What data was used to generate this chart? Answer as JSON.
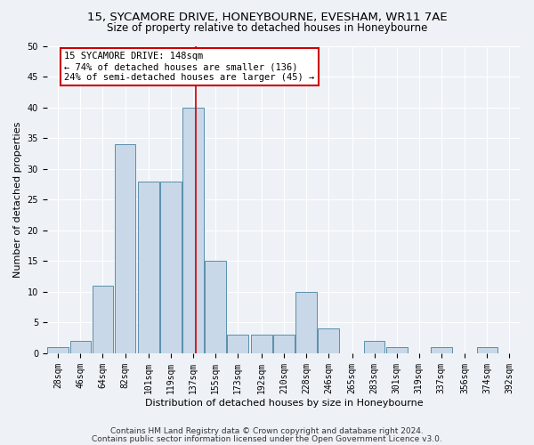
{
  "title1": "15, SYCAMORE DRIVE, HONEYBOURNE, EVESHAM, WR11 7AE",
  "title2": "Size of property relative to detached houses in Honeybourne",
  "xlabel": "Distribution of detached houses by size in Honeybourne",
  "ylabel": "Number of detached properties",
  "bin_labels": [
    "28sqm",
    "46sqm",
    "64sqm",
    "82sqm",
    "101sqm",
    "119sqm",
    "137sqm",
    "155sqm",
    "173sqm",
    "192sqm",
    "210sqm",
    "228sqm",
    "246sqm",
    "265sqm",
    "283sqm",
    "301sqm",
    "319sqm",
    "337sqm",
    "356sqm",
    "374sqm",
    "392sqm"
  ],
  "bin_edges": [
    28,
    46,
    64,
    82,
    101,
    119,
    137,
    155,
    173,
    192,
    210,
    228,
    246,
    265,
    283,
    301,
    319,
    337,
    356,
    374,
    392
  ],
  "bar_values": [
    1,
    2,
    11,
    34,
    28,
    28,
    40,
    15,
    3,
    3,
    3,
    10,
    4,
    0,
    2,
    1,
    0,
    1,
    0,
    1,
    0
  ],
  "bar_color": "#c8d8e8",
  "bar_edge_color": "#5a8faa",
  "property_size": 148,
  "property_line_color": "#cc0000",
  "annotation_text": "15 SYCAMORE DRIVE: 148sqm\n← 74% of detached houses are smaller (136)\n24% of semi-detached houses are larger (45) →",
  "annotation_box_color": "#ffffff",
  "annotation_box_edge_color": "#cc0000",
  "footer1": "Contains HM Land Registry data © Crown copyright and database right 2024.",
  "footer2": "Contains public sector information licensed under the Open Government Licence v3.0.",
  "ylim": [
    0,
    50
  ],
  "yticks": [
    0,
    5,
    10,
    15,
    20,
    25,
    30,
    35,
    40,
    45,
    50
  ],
  "background_color": "#eef2f7",
  "grid_color": "#ffffff",
  "title1_fontsize": 9.5,
  "title2_fontsize": 8.5,
  "axis_label_fontsize": 8,
  "tick_fontsize": 7,
  "annotation_fontsize": 7.5,
  "footer_fontsize": 6.5
}
